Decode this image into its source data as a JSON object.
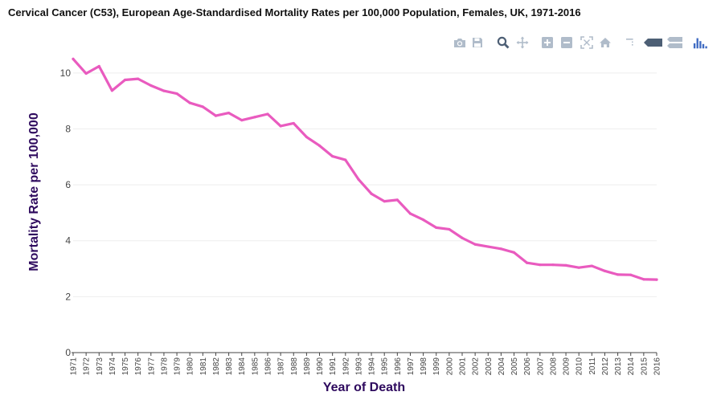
{
  "chart_data": {
    "type": "line",
    "title": "Cervical Cancer (C53), European Age-Standardised Mortality Rates per 100,000 Population, Females, UK, 1971-2016",
    "xlabel": "Year of Death",
    "ylabel": "Mortality Rate per 100,000",
    "ylim": [
      0,
      11
    ],
    "yticks": [
      0,
      2,
      4,
      6,
      8,
      10
    ],
    "grid": true,
    "categories": [
      "1971",
      "1972",
      "1973",
      "1974",
      "1975",
      "1976",
      "1977",
      "1978",
      "1979",
      "1980",
      "1981",
      "1982",
      "1983",
      "1984",
      "1985",
      "1986",
      "1987",
      "1988",
      "1989",
      "1990",
      "1991",
      "1992",
      "1993",
      "1994",
      "1995",
      "1996",
      "1997",
      "1998",
      "1999",
      "2000",
      "2001",
      "2002",
      "2003",
      "2004",
      "2005",
      "2006",
      "2007",
      "2008",
      "2009",
      "2010",
      "2011",
      "2012",
      "2013",
      "2014",
      "2015",
      "2016"
    ],
    "series": [
      {
        "name": "Mortality Rate",
        "color": "#e95bbf",
        "values": [
          10.5,
          9.98,
          10.24,
          9.37,
          9.75,
          9.79,
          9.55,
          9.36,
          9.26,
          8.93,
          8.79,
          8.47,
          8.57,
          8.31,
          8.42,
          8.53,
          8.1,
          8.2,
          7.71,
          7.4,
          7.02,
          6.89,
          6.2,
          5.68,
          5.41,
          5.46,
          4.97,
          4.75,
          4.47,
          4.41,
          4.1,
          3.87,
          3.79,
          3.71,
          3.58,
          3.21,
          3.14,
          3.14,
          3.12,
          3.04,
          3.1,
          2.92,
          2.79,
          2.78,
          2.62,
          2.61
        ]
      }
    ]
  },
  "modebar": {
    "icons": [
      "camera-icon",
      "save-icon",
      "zoom-icon",
      "pan-icon",
      "zoom-in-icon",
      "zoom-out-icon",
      "autoscale-icon",
      "home-icon",
      "spike-lines-icon",
      "hover-closest-icon",
      "hover-compare-icon",
      "plotly-logo-icon"
    ],
    "icon_color": "#b0bcca",
    "logo_color": "#3f6bc2"
  }
}
